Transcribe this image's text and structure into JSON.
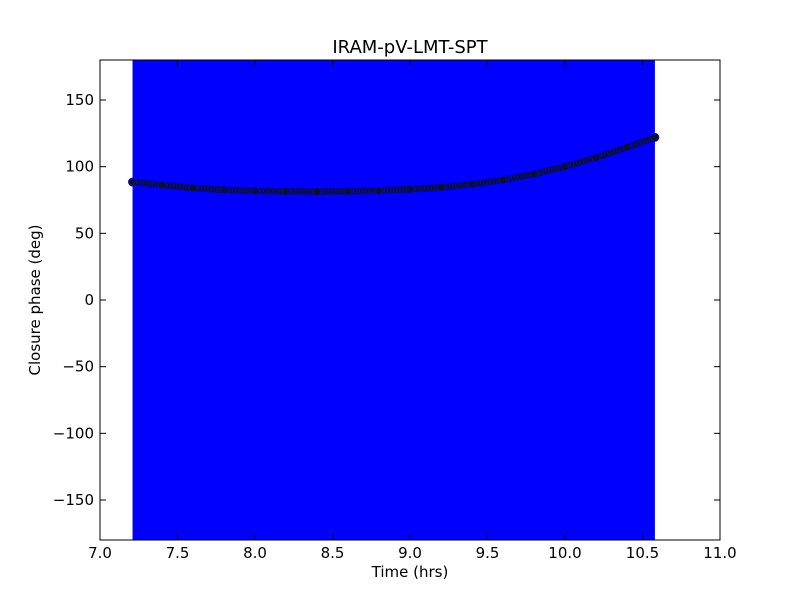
{
  "chart_data": {
    "type": "scatter",
    "title": "IRAM-pV-LMT-SPT",
    "xlabel": "Time (hrs)",
    "ylabel": "Closure phase (deg)",
    "xlim": [
      7.0,
      11.0
    ],
    "ylim": [
      -180,
      180
    ],
    "x_ticks": [
      7.0,
      7.5,
      8.0,
      8.5,
      9.0,
      9.5,
      10.0,
      10.5,
      11.0
    ],
    "x_tick_labels": [
      "7.0",
      "7.5",
      "8.0",
      "8.5",
      "9.0",
      "9.5",
      "10.0",
      "10.5",
      "11.0"
    ],
    "y_ticks": [
      -150,
      -100,
      -50,
      0,
      50,
      100,
      150
    ],
    "y_tick_labels": [
      "−150",
      "−100",
      "−50",
      "0",
      "50",
      "100",
      "150"
    ],
    "grid": false,
    "shaded_band": {
      "x_start": 7.21,
      "x_end": 10.58,
      "color": "#0000ff"
    },
    "series": [
      {
        "marker_color": "#0a1030",
        "marker_edge_color": "#0000ff",
        "x": [
          7.21,
          7.4,
          7.6,
          7.8,
          8.0,
          8.2,
          8.4,
          8.6,
          8.8,
          9.0,
          9.2,
          9.4,
          9.6,
          9.8,
          10.0,
          10.2,
          10.4,
          10.58
        ],
        "y": [
          88.5,
          86.2,
          84.0,
          82.6,
          81.8,
          81.4,
          81.3,
          81.5,
          82.0,
          83.0,
          84.5,
          86.8,
          90.0,
          94.5,
          100.0,
          106.8,
          114.5,
          122.0
        ]
      }
    ]
  }
}
